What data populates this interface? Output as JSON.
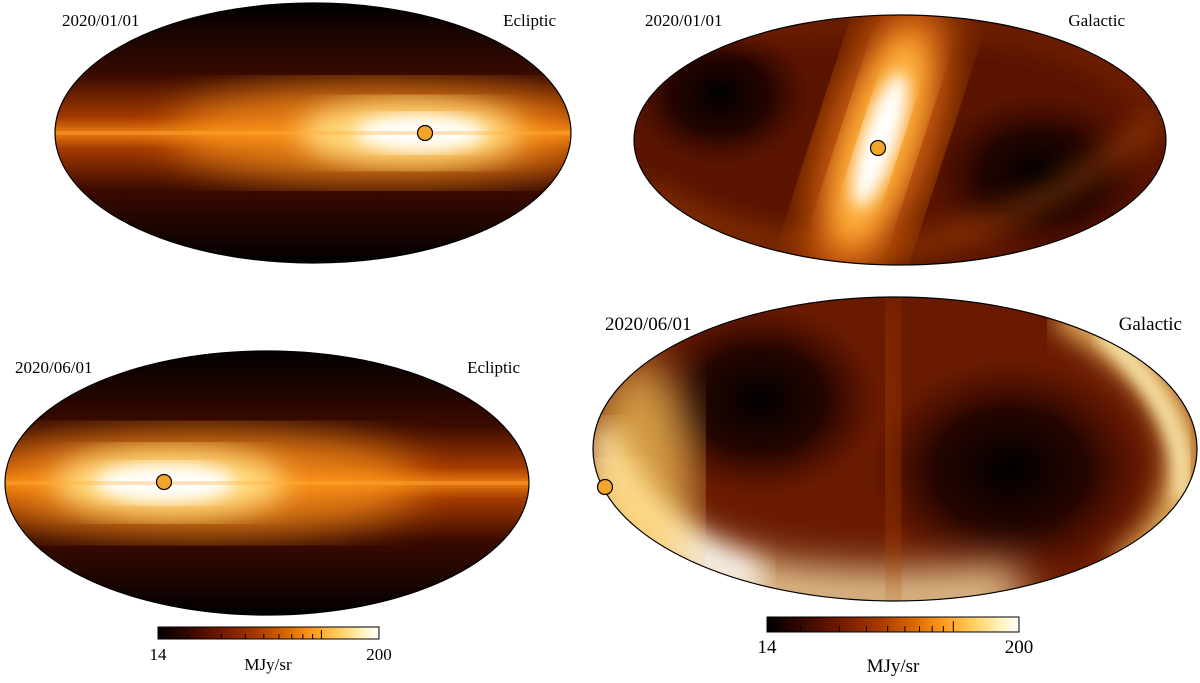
{
  "colors": {
    "colormap": [
      "#000000",
      "#2e0600",
      "#6e1800",
      "#a83a00",
      "#d86800",
      "#ff9a1e",
      "#ffd060",
      "#fff4c0",
      "#ffffff"
    ],
    "sun_marker": "#f3a52b",
    "outline": "#000000"
  },
  "maps": [
    {
      "date": "2020/01/01",
      "frame": "Ecliptic",
      "sun_marker_icon": "sun-marker-icon"
    },
    {
      "date": "2020/01/01",
      "frame": "Galactic",
      "sun_marker_icon": "sun-marker-icon"
    },
    {
      "date": "2020/06/01",
      "frame": "Ecliptic",
      "sun_marker_icon": "sun-marker-icon"
    },
    {
      "date": "2020/06/01",
      "frame": "Galactic",
      "sun_marker_icon": "sun-marker-icon"
    }
  ],
  "colorbars": [
    {
      "min_label": "14",
      "max_label": "200",
      "unit": "MJy/sr",
      "scale": "log",
      "min": 14,
      "max": 200
    },
    {
      "min_label": "14",
      "max_label": "200",
      "unit": "MJy/sr",
      "scale": "log",
      "min": 14,
      "max": 200
    }
  ]
}
